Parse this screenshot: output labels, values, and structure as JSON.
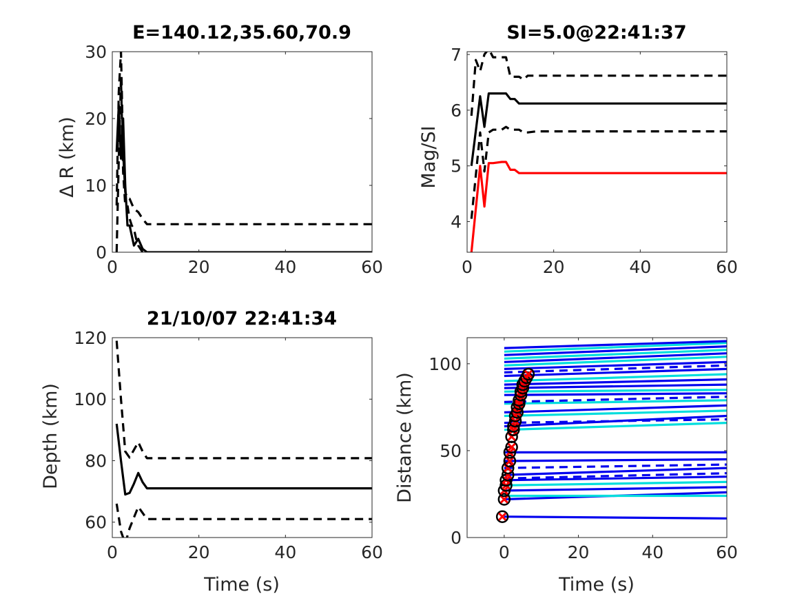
{
  "chart_data": [
    {
      "type": "line",
      "title": "E=140.12,35.60,70.9",
      "xlabel": "",
      "ylabel": "Δ R (km)",
      "xlim": [
        0,
        60
      ],
      "ylim": [
        0,
        30
      ],
      "xticks": [
        0,
        20,
        40,
        60
      ],
      "yticks": [
        0,
        10,
        20,
        30
      ],
      "series": [
        {
          "style": "solid",
          "color": "#000000",
          "x": [
            1,
            1.5,
            2,
            2.5,
            3,
            3.5,
            4,
            5,
            6,
            7,
            8,
            9,
            12,
            20,
            40,
            60
          ],
          "y": [
            15,
            22,
            14,
            20,
            10,
            4,
            4,
            1,
            2,
            0.5,
            0,
            0,
            0,
            0,
            0,
            0
          ]
        },
        {
          "style": "dashed",
          "color": "#000000",
          "x": [
            1,
            1.5,
            2,
            2.5,
            3,
            3.5,
            4,
            5,
            6,
            7,
            8,
            12,
            20,
            40,
            60
          ],
          "y": [
            7,
            24,
            30,
            15,
            9,
            8,
            8,
            6.5,
            6,
            5,
            4.2,
            4.2,
            4.2,
            4.2,
            4.2
          ]
        },
        {
          "style": "dashed",
          "color": "#000000",
          "x": [
            1,
            1.5,
            2,
            2.5,
            3,
            3.5,
            4,
            4.5,
            5,
            5.5,
            6,
            7
          ],
          "y": [
            0,
            14,
            26,
            12,
            7,
            7,
            5,
            4,
            3.5,
            2,
            1,
            0
          ]
        }
      ]
    },
    {
      "type": "line",
      "title": "SI=5.0@22:41:37",
      "xlabel": "",
      "ylabel": "Mag/SI",
      "xlim": [
        0,
        60
      ],
      "ylim": [
        3.45,
        7.05
      ],
      "xticks": [
        0,
        20,
        40,
        60
      ],
      "yticks": [
        4,
        5,
        6,
        7
      ],
      "series": [
        {
          "style": "solid",
          "color": "#000000",
          "x": [
            1,
            3,
            4,
            5,
            6,
            8,
            9,
            10,
            11,
            12,
            20,
            40,
            60
          ],
          "y": [
            5.0,
            6.25,
            5.7,
            6.3,
            6.3,
            6.3,
            6.3,
            6.2,
            6.2,
            6.12,
            6.12,
            6.12,
            6.12
          ]
        },
        {
          "style": "dashed",
          "color": "#000000",
          "x": [
            1,
            2,
            3,
            4,
            5,
            6,
            8,
            9,
            10,
            12,
            13,
            14,
            16,
            20,
            40,
            60
          ],
          "y": [
            5.9,
            6.9,
            6.7,
            7.0,
            7.1,
            6.95,
            6.95,
            6.95,
            6.6,
            6.6,
            6.55,
            6.62,
            6.62,
            6.62,
            6.62,
            6.62
          ]
        },
        {
          "style": "dashed",
          "color": "#000000",
          "x": [
            1,
            3,
            4,
            5,
            6,
            8,
            9,
            10,
            12,
            13,
            14,
            16,
            20,
            40,
            60
          ],
          "y": [
            4.05,
            5.6,
            4.9,
            5.6,
            5.65,
            5.65,
            5.7,
            5.65,
            5.65,
            5.6,
            5.6,
            5.62,
            5.62,
            5.62,
            5.62
          ]
        },
        {
          "style": "solid",
          "color": "#ff0000",
          "x": [
            1,
            3,
            4,
            5,
            6,
            8,
            9,
            10,
            11,
            12,
            20,
            40,
            60
          ],
          "y": [
            3.45,
            5.0,
            4.27,
            5.05,
            5.05,
            5.07,
            5.07,
            4.93,
            4.93,
            4.87,
            4.87,
            4.87,
            4.87
          ]
        }
      ]
    },
    {
      "type": "line",
      "title": "21/10/07 22:41:34",
      "xlabel": "Time (s)",
      "ylabel": "Depth (km)",
      "xlim": [
        0,
        60
      ],
      "ylim": [
        55,
        120
      ],
      "xticks": [
        0,
        20,
        40,
        60
      ],
      "yticks": [
        60,
        80,
        100,
        120
      ],
      "series": [
        {
          "style": "solid",
          "color": "#000000",
          "x": [
            1,
            2,
            3,
            4,
            5,
            6,
            7,
            8,
            12,
            20,
            40,
            60
          ],
          "y": [
            92,
            80,
            69,
            69.5,
            72.5,
            76,
            73,
            71,
            71,
            71,
            71,
            71
          ]
        },
        {
          "style": "dashed",
          "color": "#000000",
          "x": [
            1,
            2,
            3,
            4,
            5,
            6,
            7,
            8,
            12,
            20,
            40,
            60
          ],
          "y": [
            119,
            100,
            83,
            81,
            83.5,
            86,
            83,
            80.8,
            80.8,
            80.8,
            80.8,
            80.8
          ]
        },
        {
          "style": "dashed",
          "color": "#000000",
          "x": [
            1,
            2,
            3,
            4,
            5,
            6,
            7,
            8,
            12,
            20,
            40,
            60
          ],
          "y": [
            66,
            57,
            53,
            58,
            61.5,
            65,
            63,
            61,
            61,
            61,
            61,
            61
          ]
        }
      ]
    },
    {
      "type": "line",
      "title": "",
      "xlabel": "Time (s)",
      "ylabel": "Distance (km)",
      "xlim": [
        -10,
        60
      ],
      "ylim": [
        0,
        115
      ],
      "xticks": [
        0,
        20,
        40,
        60
      ],
      "yticks": [
        0,
        50,
        100
      ],
      "series": [
        {
          "style": "solid",
          "color": "#0000ee",
          "x": [
            0,
            60
          ],
          "y": [
            12,
            11
          ]
        },
        {
          "style": "solid",
          "color": "#0000ee",
          "x": [
            0,
            60
          ],
          "y": [
            22,
            26
          ]
        },
        {
          "style": "solid",
          "color": "#00dddd",
          "x": [
            0,
            60
          ],
          "y": [
            24,
            24
          ]
        },
        {
          "style": "solid",
          "color": "#0000ee",
          "x": [
            0,
            60
          ],
          "y": [
            27,
            29
          ]
        },
        {
          "style": "solid",
          "color": "#00dddd",
          "x": [
            0,
            60
          ],
          "y": [
            30,
            32
          ]
        },
        {
          "style": "solid",
          "color": "#0000ee",
          "x": [
            0,
            60
          ],
          "y": [
            33,
            35
          ]
        },
        {
          "style": "dashed",
          "color": "#0000ee",
          "x": [
            0,
            60
          ],
          "y": [
            34,
            37
          ]
        },
        {
          "style": "solid",
          "color": "#0000ee",
          "x": [
            0,
            60
          ],
          "y": [
            36,
            40
          ]
        },
        {
          "style": "dashed",
          "color": "#0000ee",
          "x": [
            0,
            60
          ],
          "y": [
            40,
            42
          ]
        },
        {
          "style": "solid",
          "color": "#0000ee",
          "x": [
            0,
            60
          ],
          "y": [
            44,
            45
          ]
        },
        {
          "style": "solid",
          "color": "#0000ee",
          "x": [
            0,
            60
          ],
          "y": [
            49,
            49
          ]
        },
        {
          "style": "solid",
          "color": "#00dddd",
          "x": [
            0,
            60
          ],
          "y": [
            62,
            66
          ]
        },
        {
          "style": "solid",
          "color": "#0000ee",
          "x": [
            0,
            60
          ],
          "y": [
            64,
            70
          ]
        },
        {
          "style": "dashed",
          "color": "#0000ee",
          "x": [
            0,
            60
          ],
          "y": [
            66,
            68
          ]
        },
        {
          "style": "solid",
          "color": "#00dddd",
          "x": [
            0,
            60
          ],
          "y": [
            70,
            73
          ]
        },
        {
          "style": "solid",
          "color": "#0000ee",
          "x": [
            0,
            60
          ],
          "y": [
            72,
            76
          ]
        },
        {
          "style": "solid",
          "color": "#00dddd",
          "x": [
            0,
            60
          ],
          "y": [
            77,
            79
          ]
        },
        {
          "style": "dashed",
          "color": "#0000ee",
          "x": [
            0,
            60
          ],
          "y": [
            78,
            81
          ]
        },
        {
          "style": "solid",
          "color": "#0000ee",
          "x": [
            0,
            60
          ],
          "y": [
            82,
            83
          ]
        },
        {
          "style": "solid",
          "color": "#00dddd",
          "x": [
            0,
            60
          ],
          "y": [
            84,
            85
          ]
        },
        {
          "style": "solid",
          "color": "#0000ee",
          "x": [
            0,
            60
          ],
          "y": [
            86,
            88
          ]
        },
        {
          "style": "solid",
          "color": "#0000ee",
          "x": [
            0,
            60
          ],
          "y": [
            88,
            91
          ]
        },
        {
          "style": "solid",
          "color": "#00dddd",
          "x": [
            0,
            60
          ],
          "y": [
            90,
            94
          ]
        },
        {
          "style": "solid",
          "color": "#0000ee",
          "x": [
            0,
            60
          ],
          "y": [
            93,
            97
          ]
        },
        {
          "style": "dashed",
          "color": "#0000ee",
          "x": [
            0,
            60
          ],
          "y": [
            95,
            99
          ]
        },
        {
          "style": "solid",
          "color": "#0000ee",
          "x": [
            0,
            60
          ],
          "y": [
            97,
            101
          ]
        },
        {
          "style": "solid",
          "color": "#00dddd",
          "x": [
            0,
            60
          ],
          "y": [
            99,
            104
          ]
        },
        {
          "style": "solid",
          "color": "#0000ee",
          "x": [
            0,
            60
          ],
          "y": [
            101,
            106
          ]
        },
        {
          "style": "solid",
          "color": "#00dddd",
          "x": [
            0,
            60
          ],
          "y": [
            103,
            108
          ]
        },
        {
          "style": "solid",
          "color": "#0000ee",
          "x": [
            0,
            60
          ],
          "y": [
            105,
            110
          ]
        },
        {
          "style": "solid",
          "color": "#00dddd",
          "x": [
            0,
            60
          ],
          "y": [
            107,
            112
          ]
        },
        {
          "style": "solid",
          "color": "#0000ee",
          "x": [
            0,
            60
          ],
          "y": [
            109,
            113
          ]
        }
      ],
      "markers": {
        "x": [
          -0.5,
          0,
          0,
          0.5,
          0.5,
          1,
          1,
          1.5,
          1.5,
          2,
          2,
          2.5,
          2.5,
          3,
          3,
          3.5,
          3.5,
          4,
          4,
          4.5,
          4.5,
          5,
          5,
          5.5,
          6,
          6.5
        ],
        "y": [
          12,
          22,
          27,
          30,
          33,
          36,
          40,
          44,
          49,
          52,
          58,
          62,
          64,
          67,
          70,
          72,
          75,
          77,
          79,
          82,
          84,
          86,
          88,
          90,
          92,
          94
        ],
        "circle_color": "#000000",
        "cross_color": "#ff0000"
      }
    }
  ]
}
